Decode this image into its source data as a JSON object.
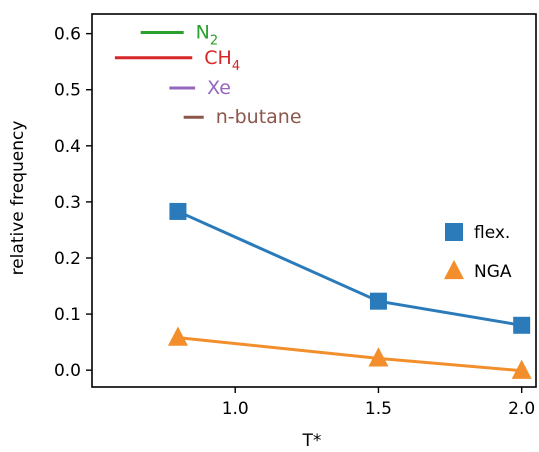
{
  "chart_data": {
    "type": "line",
    "xlabel": "T*",
    "ylabel": "relative frequency",
    "xlim": [
      0.5,
      2.05
    ],
    "ylim": [
      -0.03,
      0.635
    ],
    "x_ticks": [
      "1.0",
      "1.5",
      "2.0"
    ],
    "y_ticks": [
      "0.0",
      "0.1",
      "0.2",
      "0.3",
      "0.4",
      "0.5",
      "0.6"
    ],
    "x": [
      0.8,
      1.5,
      2.0
    ],
    "series": [
      {
        "name": "flex.",
        "values": [
          0.283,
          0.123,
          0.08
        ],
        "color": "#2b7bba",
        "marker": "square"
      },
      {
        "name": "NGA",
        "values": [
          0.058,
          0.021,
          -0.001
        ],
        "color": "#f28e2b",
        "marker": "triangle"
      }
    ],
    "legend_position": "right",
    "annotations": [
      {
        "base": "N",
        "sub": "2",
        "color": "#2ca02c",
        "x_start": 0.67,
        "x_end": 0.82,
        "y": 0.602
      },
      {
        "base": "CH",
        "sub": "4",
        "color": "#d62728",
        "x_start": 0.58,
        "x_end": 0.85,
        "y": 0.557
      },
      {
        "base": "Xe",
        "sub": "",
        "color": "#9467bd",
        "x_start": 0.77,
        "x_end": 0.86,
        "y": 0.503
      },
      {
        "base": "n-butane",
        "sub": "",
        "color": "#8c564b",
        "x_start": 0.82,
        "x_end": 0.89,
        "y": 0.451
      }
    ]
  }
}
